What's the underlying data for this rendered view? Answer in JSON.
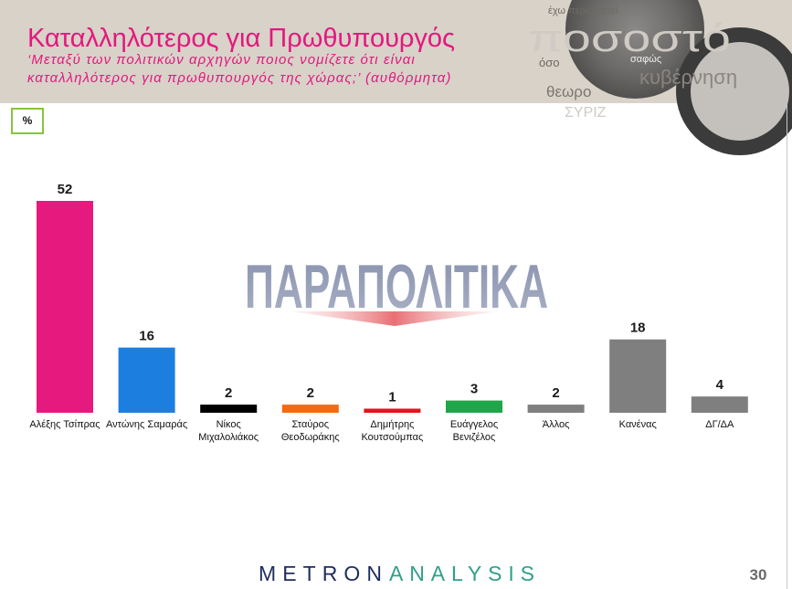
{
  "slide": {
    "title": "Καταλληλότερος για Πρωθυπουργός",
    "subtitle_line1": "‘Μεταξύ των πολιτικών αρχηγών ποιος νομίζετε ότι είναι",
    "subtitle_line2": "καταλληλότερος για πρωθυπουργός της χώρας;’ (αυθόρμητα)",
    "unit_badge": "%",
    "page_number": "30"
  },
  "header_decor": {
    "words": [
      "έχω περιοριστεί",
      "ποσοστό",
      "όσο",
      "σαφώς",
      "κυβέρνηση",
      "θεωρο",
      "ΣΥΡΙΖ"
    ]
  },
  "watermark": {
    "text": "ΠΑΡΑΠΟΛΙΤΙΚΑ"
  },
  "footer": {
    "brand_part1": "METRON",
    "brand_part2": "ANALYSIS"
  },
  "colors": {
    "title": "#e5177e",
    "header_background": "#d8d2c9",
    "badge_border": "#86c440",
    "brand_navy": "#1f2d5c",
    "brand_teal": "#2fa08a",
    "watermark": "#8790ad",
    "page_number": "#6a6a6a"
  },
  "chart_data": {
    "type": "bar",
    "categories": [
      "Αλέξης Τσίπρας",
      "Αντώνης Σαμαράς",
      "Νίκος Μιχαλολιάκος",
      "Σταύρος Θεοδωράκης",
      "Δημήτρης Κουτσούμπας",
      "Ευάγγελος Βενιζέλος",
      "Άλλος",
      "Κανένας",
      "ΔΓ/ΔΑ"
    ],
    "values": [
      52,
      16,
      2,
      2,
      1,
      3,
      2,
      18,
      4
    ],
    "colors": [
      "#e5197e",
      "#1c7fe0",
      "#000000",
      "#f26b12",
      "#e3141c",
      "#1ea64b",
      "#7f7f7f",
      "#7f7f7f",
      "#7f7f7f"
    ],
    "value_labels": true,
    "grid": false,
    "legend": "none"
  }
}
